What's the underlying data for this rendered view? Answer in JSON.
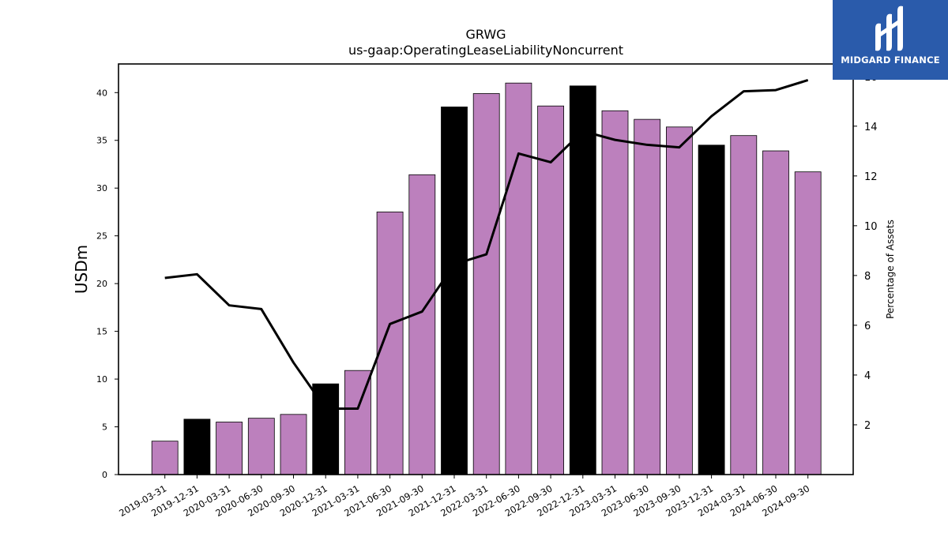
{
  "chart_data": {
    "type": "bar",
    "title": "GRWG",
    "subtitle": "us-gaap:OperatingLeaseLiabilityNoncurrent",
    "ylabel": "USDm",
    "y2label": "Percentage of Assets",
    "ylim": [
      0,
      43
    ],
    "y2lim": [
      0,
      16.5
    ],
    "yticks": [
      0,
      5,
      10,
      15,
      20,
      25,
      30,
      35,
      40
    ],
    "y2ticks": [
      2,
      4,
      6,
      8,
      10,
      12,
      14,
      16
    ],
    "grid": false,
    "bar_colors": {
      "quarter": "#bc80bd",
      "year_end": "#000000"
    },
    "line_color": "#000000",
    "categories": [
      "2019-03-31",
      "2019-12-31",
      "2020-03-31",
      "2020-06-30",
      "2020-09-30",
      "2020-12-31",
      "2021-03-31",
      "2021-06-30",
      "2021-09-30",
      "2021-12-31",
      "2022-03-31",
      "2022-06-30",
      "2022-09-30",
      "2022-12-31",
      "2023-03-31",
      "2023-06-30",
      "2023-09-30",
      "2023-12-31",
      "2024-03-31",
      "2024-06-30",
      "2024-09-30"
    ],
    "values": [
      3.5,
      5.8,
      5.5,
      5.9,
      6.3,
      9.5,
      10.9,
      27.5,
      31.4,
      38.5,
      39.9,
      41.0,
      38.6,
      40.7,
      38.1,
      37.2,
      36.4,
      34.5,
      35.5,
      33.9,
      31.7
    ],
    "is_year_end": [
      false,
      true,
      false,
      false,
      false,
      true,
      false,
      false,
      false,
      true,
      false,
      false,
      false,
      true,
      false,
      false,
      false,
      true,
      false,
      false,
      false
    ],
    "line_values": [
      7.9,
      8.05,
      6.8,
      6.65,
      4.5,
      2.65,
      2.65,
      6.05,
      6.55,
      8.45,
      8.85,
      12.9,
      12.55,
      13.8,
      13.45,
      13.25,
      13.15,
      14.4,
      15.4,
      15.45,
      15.85
    ]
  },
  "logo": {
    "text": "MIDGARD FINANCE",
    "color": "#2a5bab"
  }
}
